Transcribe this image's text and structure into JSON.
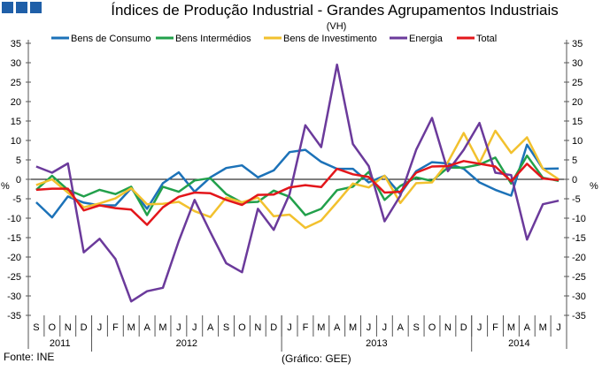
{
  "chart_data": {
    "type": "line",
    "title": "Índices de Produção Industrial - Grandes Agrupamentos Industriais",
    "subtitle": "(VH)",
    "ylabel_left": "%",
    "ylabel_right": "%",
    "ylim": [
      -35,
      35
    ],
    "yticks": [
      35,
      30,
      25,
      20,
      15,
      10,
      5,
      0,
      -5,
      -10,
      -15,
      -20,
      -25,
      -30,
      -35
    ],
    "months": [
      "S",
      "O",
      "N",
      "D",
      "J",
      "F",
      "M",
      "A",
      "M",
      "J",
      "J",
      "A",
      "S",
      "O",
      "N",
      "D",
      "J",
      "F",
      "M",
      "A",
      "M",
      "J",
      "J",
      "A",
      "S",
      "O",
      "N",
      "D",
      "J",
      "F",
      "M",
      "A",
      "M",
      "J"
    ],
    "years": [
      {
        "label": "2011",
        "start": 0,
        "count": 4
      },
      {
        "label": "2012",
        "start": 4,
        "count": 12
      },
      {
        "label": "2013",
        "start": 16,
        "count": 12
      },
      {
        "label": "2014",
        "start": 28,
        "count": 6
      }
    ],
    "legend_position": "top",
    "series": [
      {
        "name": "Bens de Consumo",
        "color": "#1c72b8",
        "values": [
          -5.9,
          -9.8,
          -4.4,
          -6,
          -6.7,
          -6.7,
          -2.3,
          -7.6,
          -1,
          1.8,
          -3.2,
          0.5,
          2.9,
          3.6,
          0.5,
          2.3,
          7,
          7.6,
          4.5,
          2.7,
          2.7,
          -0.8,
          0.9,
          -3.8,
          2.1,
          4.4,
          4.1,
          2.7,
          -0.8,
          -2.7,
          -4.2,
          8.9,
          2.7,
          2.8
        ]
      },
      {
        "name": "Bens Intermédios",
        "color": "#22a04b",
        "values": [
          -2.7,
          0.9,
          -2.7,
          -4.4,
          -2.7,
          -3.8,
          -1.9,
          -9.2,
          -1.9,
          -3.2,
          -0.3,
          0.3,
          -3.8,
          -6,
          -5.8,
          -2.9,
          -4.5,
          -9.2,
          -7.6,
          -2.8,
          -1.9,
          1.9,
          -5.3,
          -1.7,
          0.5,
          -0.4,
          3,
          3,
          3.8,
          5.6,
          -1.1,
          6.1,
          0.4,
          -0.4
        ]
      },
      {
        "name": "Bens de Investimento",
        "color": "#f2c12e",
        "values": [
          -1.5,
          0,
          -3.4,
          -7.2,
          -6.2,
          -4.9,
          -2.3,
          -6.4,
          -6.3,
          -5.8,
          -8.2,
          -9.7,
          -4.7,
          -5.9,
          -4.7,
          -9.5,
          -9.1,
          -12.5,
          -10.6,
          -5.9,
          -1.1,
          -2.1,
          0.9,
          -6.1,
          -1,
          -0.8,
          4.4,
          11.9,
          4.2,
          12.5,
          6.8,
          10.8,
          2.7,
          0
        ]
      },
      {
        "name": "Energia",
        "color": "#6b3a9b",
        "values": [
          3.3,
          1.7,
          4.1,
          -18.8,
          -15.3,
          -20.5,
          -31.4,
          -28.8,
          -27.9,
          -15.9,
          -5.3,
          -13.6,
          -21.6,
          -23.9,
          -7.6,
          -13,
          -3.8,
          13.9,
          8.3,
          29.5,
          9.1,
          3.4,
          -10.8,
          -4.2,
          7.6,
          15.8,
          2.1,
          7.6,
          14.5,
          1.7,
          1.1,
          -15.5,
          -6.4,
          -5.5
        ]
      },
      {
        "name": "Total",
        "color": "#e3161b",
        "values": [
          -2.7,
          -2.4,
          -2.4,
          -8,
          -6.7,
          -7.4,
          -7.8,
          -11.7,
          -7.2,
          -4.5,
          -3.4,
          -3.6,
          -5.3,
          -6.6,
          -4,
          -3.9,
          -2.1,
          -1.5,
          -2,
          2.7,
          1.3,
          0.6,
          -3.4,
          -3.2,
          1.7,
          3.3,
          3.4,
          4.7,
          4,
          3.3,
          -0.5,
          4,
          0.2,
          -0.2
        ]
      }
    ]
  },
  "footer": {
    "source": "Fonte: INE",
    "credit": "(Gráfico: GEE)"
  },
  "logo_color": "#1f5fa8"
}
